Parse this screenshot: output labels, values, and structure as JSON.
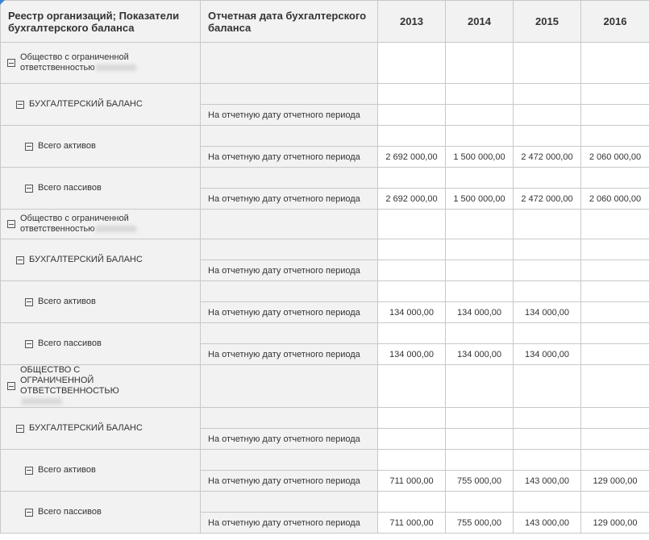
{
  "header": {
    "col_indicator": "Реестр организаций; Показатели бухгалтерского баланса",
    "col_date": "Отчетная дата бухгалтерского баланса",
    "years": [
      "2013",
      "2014",
      "2015",
      "2016"
    ]
  },
  "organizations": [
    {
      "name": "Общество с ограниченной ответственностью",
      "h": 51,
      "items": [
        {
          "label": "БУХГАЛТЕРСКИЙ БАЛАНС",
          "level": 1,
          "date": "На отчетную дату отчетного периода",
          "values": [
            "",
            "",
            "",
            ""
          ]
        },
        {
          "label": "Всего активов",
          "level": 2,
          "date": "На отчетную дату отчетного периода",
          "values": [
            "2 692 000,00",
            "1 500 000,00",
            "2 472 000,00",
            "2 060 000,00"
          ]
        },
        {
          "label": "Всего пассивов",
          "level": 2,
          "date": "На отчетную дату отчетного периода",
          "values": [
            "2 692 000,00",
            "1 500 000,00",
            "2 472 000,00",
            "2 060 000,00"
          ]
        }
      ]
    },
    {
      "name": "Общество с ограниченной ответственностью",
      "h": 37,
      "items": [
        {
          "label": "БУХГАЛТЕРСКИЙ БАЛАНС",
          "level": 1,
          "date": "На отчетную дату отчетного периода",
          "values": [
            "",
            "",
            "",
            ""
          ]
        },
        {
          "label": "Всего активов",
          "level": 2,
          "date": "На отчетную дату отчетного периода",
          "values": [
            "134 000,00",
            "134 000,00",
            "134 000,00",
            ""
          ]
        },
        {
          "label": "Всего пассивов",
          "level": 2,
          "date": "На отчетную дату отчетного периода",
          "values": [
            "134 000,00",
            "134 000,00",
            "134 000,00",
            ""
          ]
        }
      ]
    },
    {
      "name": "ОБЩЕСТВО С ОГРАНИЧЕННОЙ ОТВЕТСТВЕННОСТЬЮ",
      "h": 49,
      "items": [
        {
          "label": "БУХГАЛТЕРСКИЙ БАЛАНС",
          "level": 1,
          "date": "На отчетную дату отчетного периода",
          "values": [
            "",
            "",
            "",
            ""
          ]
        },
        {
          "label": "Всего активов",
          "level": 2,
          "date": "На отчетную дату отчетного периода",
          "values": [
            "711 000,00",
            "755 000,00",
            "143 000,00",
            "129 000,00"
          ]
        },
        {
          "label": "Всего пассивов",
          "level": 2,
          "date": "На отчетную дату отчетного периода",
          "values": [
            "711 000,00",
            "755 000,00",
            "143 000,00",
            "129 000,00"
          ]
        }
      ]
    }
  ]
}
